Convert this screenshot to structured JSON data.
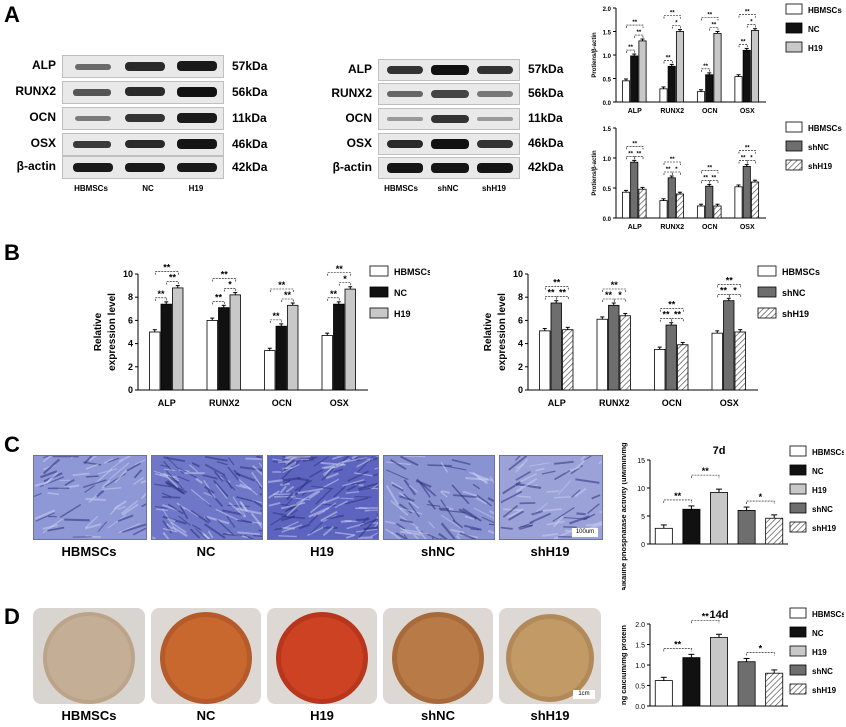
{
  "panels": {
    "A": "A",
    "B": "B",
    "C": "C",
    "D": "D"
  },
  "blot1": {
    "rows": [
      "ALP",
      "RUNX2",
      "OCN",
      "OSX",
      "β-actin"
    ],
    "kda": [
      "57kDa",
      "56kDa",
      "11kDa",
      "46kDa",
      "42kDa"
    ],
    "lanes": [
      "HBMSCs",
      "NC",
      "H19"
    ]
  },
  "blot2": {
    "rows": [
      "ALP",
      "RUNX2",
      "OCN",
      "OSX",
      "β-actin"
    ],
    "kda": [
      "57kDa",
      "56kDa",
      "11kDa",
      "46kDa",
      "42kDa"
    ],
    "lanes": [
      "HBMSCs",
      "shNC",
      "shH19"
    ]
  },
  "photosC": {
    "captions": [
      "HBMSCs",
      "NC",
      "H19",
      "shNC",
      "shH19"
    ],
    "scalebar": "100um"
  },
  "photosD": {
    "captions": [
      "HBMSCs",
      "NC",
      "H19",
      "shNC",
      "shH19"
    ],
    "scalebar": "1cm"
  },
  "colors": {
    "HBMSCs": "#ffffff",
    "NC": "#111111",
    "H19": "#c8c8c8",
    "shNC": "#6e6e6e",
    "shH19": "#e4e4e4"
  },
  "chart_data": [
    {
      "id": "A_top",
      "type": "bar",
      "ylabel": "Protiens/β-actin",
      "categories": [
        "ALP",
        "RUNX2",
        "OCN",
        "OSX"
      ],
      "ylim": [
        0,
        2.0
      ],
      "yticks": [
        "0.0",
        "0.5",
        "1.0",
        "1.5",
        "2.0"
      ],
      "series": [
        {
          "name": "HBMSCs",
          "values": [
            0.45,
            0.28,
            0.22,
            0.54
          ]
        },
        {
          "name": "NC",
          "values": [
            0.98,
            0.76,
            0.58,
            1.1
          ]
        },
        {
          "name": "H19",
          "values": [
            1.3,
            1.5,
            1.46,
            1.52
          ]
        }
      ]
    },
    {
      "id": "A_bottom",
      "type": "bar",
      "ylabel": "Protiens/β-actin",
      "categories": [
        "ALP",
        "RUNX2",
        "OCN",
        "OSX"
      ],
      "ylim": [
        0,
        1.5
      ],
      "yticks": [
        "0.0",
        "0.5",
        "1.0",
        "1.5"
      ],
      "series": [
        {
          "name": "HBMSCs",
          "values": [
            0.43,
            0.29,
            0.2,
            0.52
          ]
        },
        {
          "name": "shNC",
          "values": [
            0.93,
            0.67,
            0.53,
            0.86
          ]
        },
        {
          "name": "shH19",
          "values": [
            0.48,
            0.4,
            0.2,
            0.6
          ]
        }
      ]
    },
    {
      "id": "B_left",
      "type": "bar",
      "ylabel": "Relative expression level",
      "categories": [
        "ALP",
        "RUNX2",
        "OCN",
        "OSX"
      ],
      "ylim": [
        0,
        10
      ],
      "yticks": [
        "0",
        "2",
        "4",
        "6",
        "8",
        "10"
      ],
      "series": [
        {
          "name": "HBMSCs",
          "values": [
            5.0,
            6.0,
            3.4,
            4.7
          ]
        },
        {
          "name": "NC",
          "values": [
            7.4,
            7.1,
            5.5,
            7.4
          ]
        },
        {
          "name": "H19",
          "values": [
            8.8,
            8.2,
            7.3,
            8.7
          ]
        }
      ]
    },
    {
      "id": "B_right",
      "type": "bar",
      "ylabel": "Relative expression level",
      "categories": [
        "ALP",
        "RUNX2",
        "OCN",
        "OSX"
      ],
      "ylim": [
        0,
        10
      ],
      "yticks": [
        "0",
        "2",
        "4",
        "6",
        "8",
        "10"
      ],
      "series": [
        {
          "name": "HBMSCs",
          "values": [
            5.1,
            6.1,
            3.5,
            4.9
          ]
        },
        {
          "name": "shNC",
          "values": [
            7.5,
            7.3,
            5.6,
            7.7
          ]
        },
        {
          "name": "shH19",
          "values": [
            5.2,
            6.4,
            3.9,
            5.0
          ]
        }
      ]
    },
    {
      "id": "C_chart",
      "type": "bar",
      "title": "7d",
      "ylabel": "Alkaline phosphatase activity (uM/min/mg protein)",
      "categories": [
        "HBMSCs",
        "NC",
        "H19",
        "shNC",
        "shH19"
      ],
      "ylim": [
        0,
        15
      ],
      "yticks": [
        "0",
        "5",
        "10",
        "15"
      ],
      "values": [
        2.8,
        6.2,
        9.2,
        6.0,
        4.6
      ]
    },
    {
      "id": "D_chart",
      "type": "bar",
      "title": "14d",
      "ylabel": "ng calcium/mg protein",
      "categories": [
        "HBMSCs",
        "NC",
        "H19",
        "shNC",
        "shH19"
      ],
      "ylim": [
        0,
        2.0
      ],
      "yticks": [
        "0.0",
        "0.5",
        "1.0",
        "1.5",
        "2.0"
      ],
      "values": [
        0.62,
        1.18,
        1.67,
        1.08,
        0.8
      ]
    }
  ],
  "sig": "**",
  "sig1": "*"
}
